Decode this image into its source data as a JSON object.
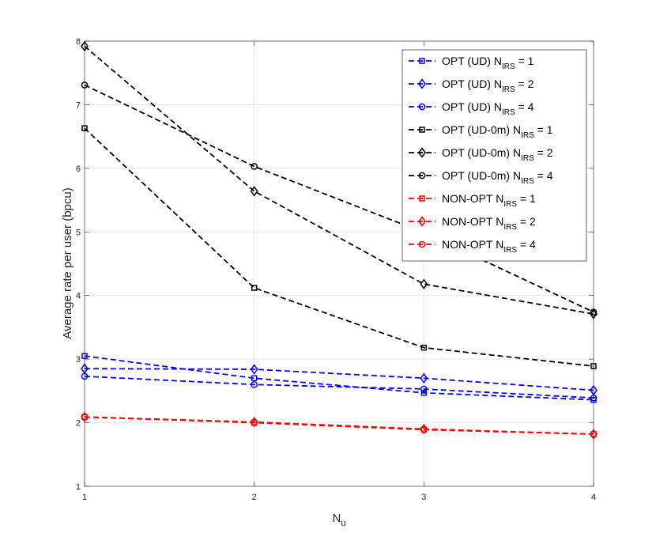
{
  "chart_data": {
    "type": "line",
    "title": "",
    "xlabel_base": "N",
    "xlabel_sub": "u",
    "ylabel": "Average rate per user (bpcu)",
    "x": [
      1,
      2,
      3,
      4
    ],
    "xlim": [
      1,
      4
    ],
    "ylim": [
      1,
      8
    ],
    "xticks": [
      1,
      2,
      3,
      4
    ],
    "yticks": [
      1,
      2,
      3,
      4,
      5,
      6,
      7,
      8
    ],
    "grid": true,
    "legend_position": "top-right",
    "series": [
      {
        "label_main": "OPT (UD) N",
        "label_sub": "IRS",
        "label_tail": " = 1",
        "color": "#0000ff",
        "marker": "square",
        "values": [
          3.05,
          2.7,
          2.47,
          2.36
        ]
      },
      {
        "label_main": "OPT (UD) N",
        "label_sub": "IRS",
        "label_tail": " = 2",
        "color": "#0000ff",
        "marker": "diamond",
        "values": [
          2.85,
          2.84,
          2.7,
          2.51
        ]
      },
      {
        "label_main": "OPT (UD) N",
        "label_sub": "IRS",
        "label_tail": " = 4",
        "color": "#0000ff",
        "marker": "circle",
        "values": [
          2.73,
          2.6,
          2.53,
          2.39
        ]
      },
      {
        "label_main": "OPT (UD-0m) N",
        "label_sub": "IRS",
        "label_tail": " = 1",
        "color": "#000000",
        "marker": "square",
        "values": [
          6.63,
          4.12,
          3.18,
          2.89
        ]
      },
      {
        "label_main": "OPT (UD-0m) N",
        "label_sub": "IRS",
        "label_tail": " = 2",
        "color": "#000000",
        "marker": "diamond",
        "values": [
          7.92,
          5.64,
          4.18,
          3.71
        ]
      },
      {
        "label_main": "OPT (UD-0m) N",
        "label_sub": "IRS",
        "label_tail": " = 4",
        "color": "#000000",
        "marker": "circle",
        "values": [
          7.31,
          6.03,
          4.99,
          3.74
        ]
      },
      {
        "label_main": "NON-OPT N",
        "label_sub": "IRS",
        "label_tail": " = 1",
        "color": "#ff0000",
        "marker": "square",
        "values": [
          2.09,
          2.0,
          1.89,
          1.82
        ]
      },
      {
        "label_main": "NON-OPT N",
        "label_sub": "IRS",
        "label_tail": " = 2",
        "color": "#ff0000",
        "marker": "diamond",
        "values": [
          2.09,
          2.01,
          1.9,
          1.82
        ]
      },
      {
        "label_main": "NON-OPT N",
        "label_sub": "IRS",
        "label_tail": " = 4",
        "color": "#ff0000",
        "marker": "circle",
        "values": [
          2.09,
          2.01,
          1.9,
          1.82
        ]
      }
    ]
  }
}
